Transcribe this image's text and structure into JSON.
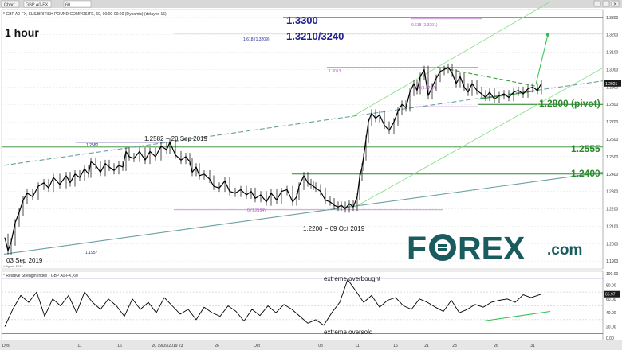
{
  "toolbar": {
    "chart_tab": "Chart",
    "symbol": "GBP A0-FX",
    "interval": "60"
  },
  "header": {
    "description": "* GBP A0-FX, $US/BRITISH POUND COMPOSITE, 60, 00:00-00:00 (Dynamic) (delayed 15)",
    "timeframe": "1 hour",
    "credit": "eSignal, 2019"
  },
  "main_chart": {
    "y_ticks": [
      "1.3300",
      "1.3200",
      "1.3100",
      "1.3000",
      "1.2900",
      "1.2800",
      "1.2700",
      "1.2600",
      "1.2500",
      "1.2400",
      "1.2300",
      "1.2200",
      "1.2100",
      "1.2000",
      "1.1900"
    ],
    "ylim": [
      1.1855,
      1.3345
    ],
    "last_price": "1.2921",
    "annotations": {
      "level_1_3300": "1.3300",
      "level_1_3210_3240": "1.3210/3240",
      "pivot": "1.2800 (pivot)",
      "level_1_2555": "1.2555",
      "level_1_2400": "1.2400",
      "high_label": "1.2582 − 20 Sep 2019",
      "low_label": "1.2200 − 09 Oct 2019",
      "start_label": "03 Sep 2019",
      "fib_1_618": "1.618 (1.3209)",
      "fib_0_618": "0.618 (1.3291)",
      "fib_1_3013": "1.3013",
      "fib_0_2787": "0 (1.2787)",
      "fib_1_2582": "1.2582",
      "fib_0_2194": "0 (1.2194)",
      "fib_1_1957": "1.1957"
    }
  },
  "rsi_panel": {
    "title": "* Relative Strength Index - GBP A0-FX, 60",
    "y_ticks": [
      "100.00",
      "80.00",
      "60.00",
      "40.00",
      "20.00",
      "0.00"
    ],
    "current_value": "66.97",
    "overbought_label": "extreme overbought",
    "oversold_label": "extreme oversold"
  },
  "x_axis": {
    "corner_label": "Dys",
    "ticks": [
      "11",
      "16",
      "20 19/09/2019 23",
      "26",
      "Oct",
      "08",
      "11",
      "16",
      "21",
      "23",
      "26",
      "31"
    ]
  },
  "logo": {
    "text_before": "F",
    "text_after": "REX",
    "suffix": ".com",
    "color": "#1a5c5e"
  },
  "chart_data": {
    "type": "line",
    "title": "1 hour",
    "xlabel": "",
    "ylabel": "",
    "ylim": [
      1.1855,
      1.3345
    ],
    "grid": true,
    "series": [
      {
        "name": "",
        "x": [
          0,
          4,
          8,
          13,
          18,
          23,
          28,
          35,
          42,
          49,
          55,
          61,
          69,
          77,
          82,
          88,
          94,
          100,
          105,
          108,
          114,
          120,
          126,
          131,
          137,
          143,
          148,
          152,
          156,
          162,
          169,
          176,
          182,
          189,
          196,
          203,
          207,
          214,
          221,
          227,
          232,
          235,
          240,
          244,
          250,
          257,
          262,
          269,
          276,
          282,
          289,
          296,
          303,
          309,
          314,
          321,
          328,
          334,
          341,
          347,
          354,
          361,
          366,
          369,
          375,
          380,
          384,
          387,
          390,
          396,
          402,
          408,
          413,
          418,
          422,
          427,
          432,
          437,
          442,
          445,
          448,
          450,
          453,
          456,
          460,
          465,
          470,
          476,
          482,
          488,
          493,
          498,
          503,
          508,
          513,
          517,
          521,
          526,
          531,
          536,
          541,
          546,
          551,
          556,
          561,
          566,
          571,
          576,
          581,
          586,
          592,
          598,
          603,
          608,
          614,
          620,
          626,
          632,
          638,
          644,
          650,
          656,
          662,
          668,
          673
        ],
        "values": [
          1.2035,
          1.196,
          1.201,
          1.212,
          1.218,
          1.225,
          1.229,
          1.227,
          1.233,
          1.235,
          1.232,
          1.238,
          1.234,
          1.239,
          1.235,
          1.24,
          1.238,
          1.243,
          1.24,
          1.247,
          1.245,
          1.241,
          1.246,
          1.244,
          1.242,
          1.245,
          1.244,
          1.253,
          1.25,
          1.249,
          1.253,
          1.248,
          1.253,
          1.25,
          1.256,
          1.254,
          1.2582,
          1.251,
          1.248,
          1.25,
          1.247,
          1.241,
          1.244,
          1.239,
          1.24,
          1.237,
          1.233,
          1.232,
          1.236,
          1.23,
          1.229,
          1.231,
          1.228,
          1.23,
          1.226,
          1.228,
          1.224,
          1.229,
          1.225,
          1.23,
          1.231,
          1.224,
          1.227,
          1.233,
          1.239,
          1.235,
          1.234,
          1.233,
          1.232,
          1.23,
          1.225,
          1.224,
          1.222,
          1.221,
          1.222,
          1.22,
          1.223,
          1.221,
          1.227,
          1.238,
          1.244,
          1.25,
          1.26,
          1.27,
          1.275,
          1.272,
          1.274,
          1.268,
          1.265,
          1.27,
          1.276,
          1.28,
          1.278,
          1.287,
          1.292,
          1.288,
          1.296,
          1.3,
          1.285,
          1.29,
          1.295,
          1.299,
          1.3,
          1.3013,
          1.298,
          1.292,
          1.296,
          1.29,
          1.287,
          1.292,
          1.288,
          1.286,
          1.284,
          1.287,
          1.283,
          1.285,
          1.286,
          1.284,
          1.287,
          1.288,
          1.286,
          1.289,
          1.29,
          1.288,
          1.2921
        ]
      },
      {
        "name": "",
        "x": [
          0,
          10,
          20,
          30,
          40,
          50,
          60,
          70,
          80,
          90,
          100,
          110,
          120,
          130,
          140,
          150,
          160,
          170,
          180,
          190,
          200,
          210,
          220,
          230,
          240,
          250,
          260,
          270,
          280,
          290,
          300,
          310,
          320,
          330,
          340,
          350,
          360,
          370,
          380,
          390,
          400,
          410,
          420,
          430,
          440,
          450,
          460,
          470,
          480,
          490,
          500,
          510,
          520,
          530,
          540,
          550,
          560,
          570,
          580,
          590,
          600,
          610,
          620,
          630,
          640,
          650,
          660,
          673
        ],
        "values": [
          20,
          45,
          65,
          55,
          70,
          35,
          60,
          50,
          65,
          40,
          70,
          55,
          45,
          60,
          50,
          35,
          60,
          45,
          55,
          40,
          62,
          50,
          38,
          45,
          30,
          48,
          40,
          35,
          50,
          42,
          28,
          45,
          36,
          50,
          40,
          52,
          45,
          35,
          25,
          30,
          22,
          40,
          55,
          88,
          72,
          55,
          65,
          48,
          58,
          62,
          50,
          45,
          60,
          55,
          48,
          42,
          58,
          40,
          45,
          52,
          48,
          55,
          58,
          60,
          55,
          66,
          62,
          66.97
        ]
      }
    ],
    "horizontal_levels": [
      1.33,
      1.3209,
      1.28,
      1.2555,
      1.24,
      1.2582,
      1.2194,
      1.1957,
      1.3013,
      1.2787
    ],
    "rsi_levels": [
      90,
      70,
      50,
      30,
      10
    ]
  }
}
